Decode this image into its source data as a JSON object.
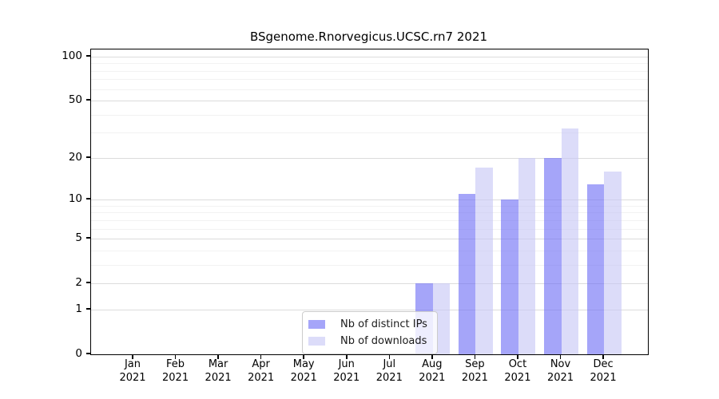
{
  "chart_data": {
    "type": "bar",
    "title": "BSgenome.Rnorvegicus.UCSC.rn7 2021",
    "categories": [
      "Jan",
      "Feb",
      "Mar",
      "Apr",
      "May",
      "Jun",
      "Jul",
      "Aug",
      "Sep",
      "Oct",
      "Nov",
      "Dec"
    ],
    "x_year": "2021",
    "series": [
      {
        "name": "Nb of distinct IPs",
        "color": "rgba(109,109,245,0.62)",
        "values": [
          0,
          0,
          0,
          0,
          0,
          0,
          0,
          2,
          11,
          10,
          20,
          13
        ]
      },
      {
        "name": "Nb of downloads",
        "color": "rgba(199,199,246,0.62)",
        "values": [
          0,
          0,
          0,
          0,
          0,
          0,
          0,
          2,
          17,
          20,
          32,
          16
        ]
      }
    ],
    "yscale": "log1p",
    "yticks": [
      0,
      1,
      2,
      5,
      10,
      20,
      50,
      100
    ],
    "ytick_labels": [
      "0",
      "1",
      "2",
      "5",
      "10",
      "20",
      "50",
      "100"
    ],
    "minor_yticks": [
      3,
      4,
      6,
      7,
      8,
      9,
      30,
      40,
      60,
      70,
      80,
      90
    ],
    "ylim": [
      0,
      112
    ],
    "grid": "horizontal",
    "legend_position": "lower-center",
    "colors": {
      "major_grid": "#dcdcdc",
      "minor_grid": "#f2f2f2",
      "axis": "#000000",
      "background": "#ffffff"
    }
  }
}
